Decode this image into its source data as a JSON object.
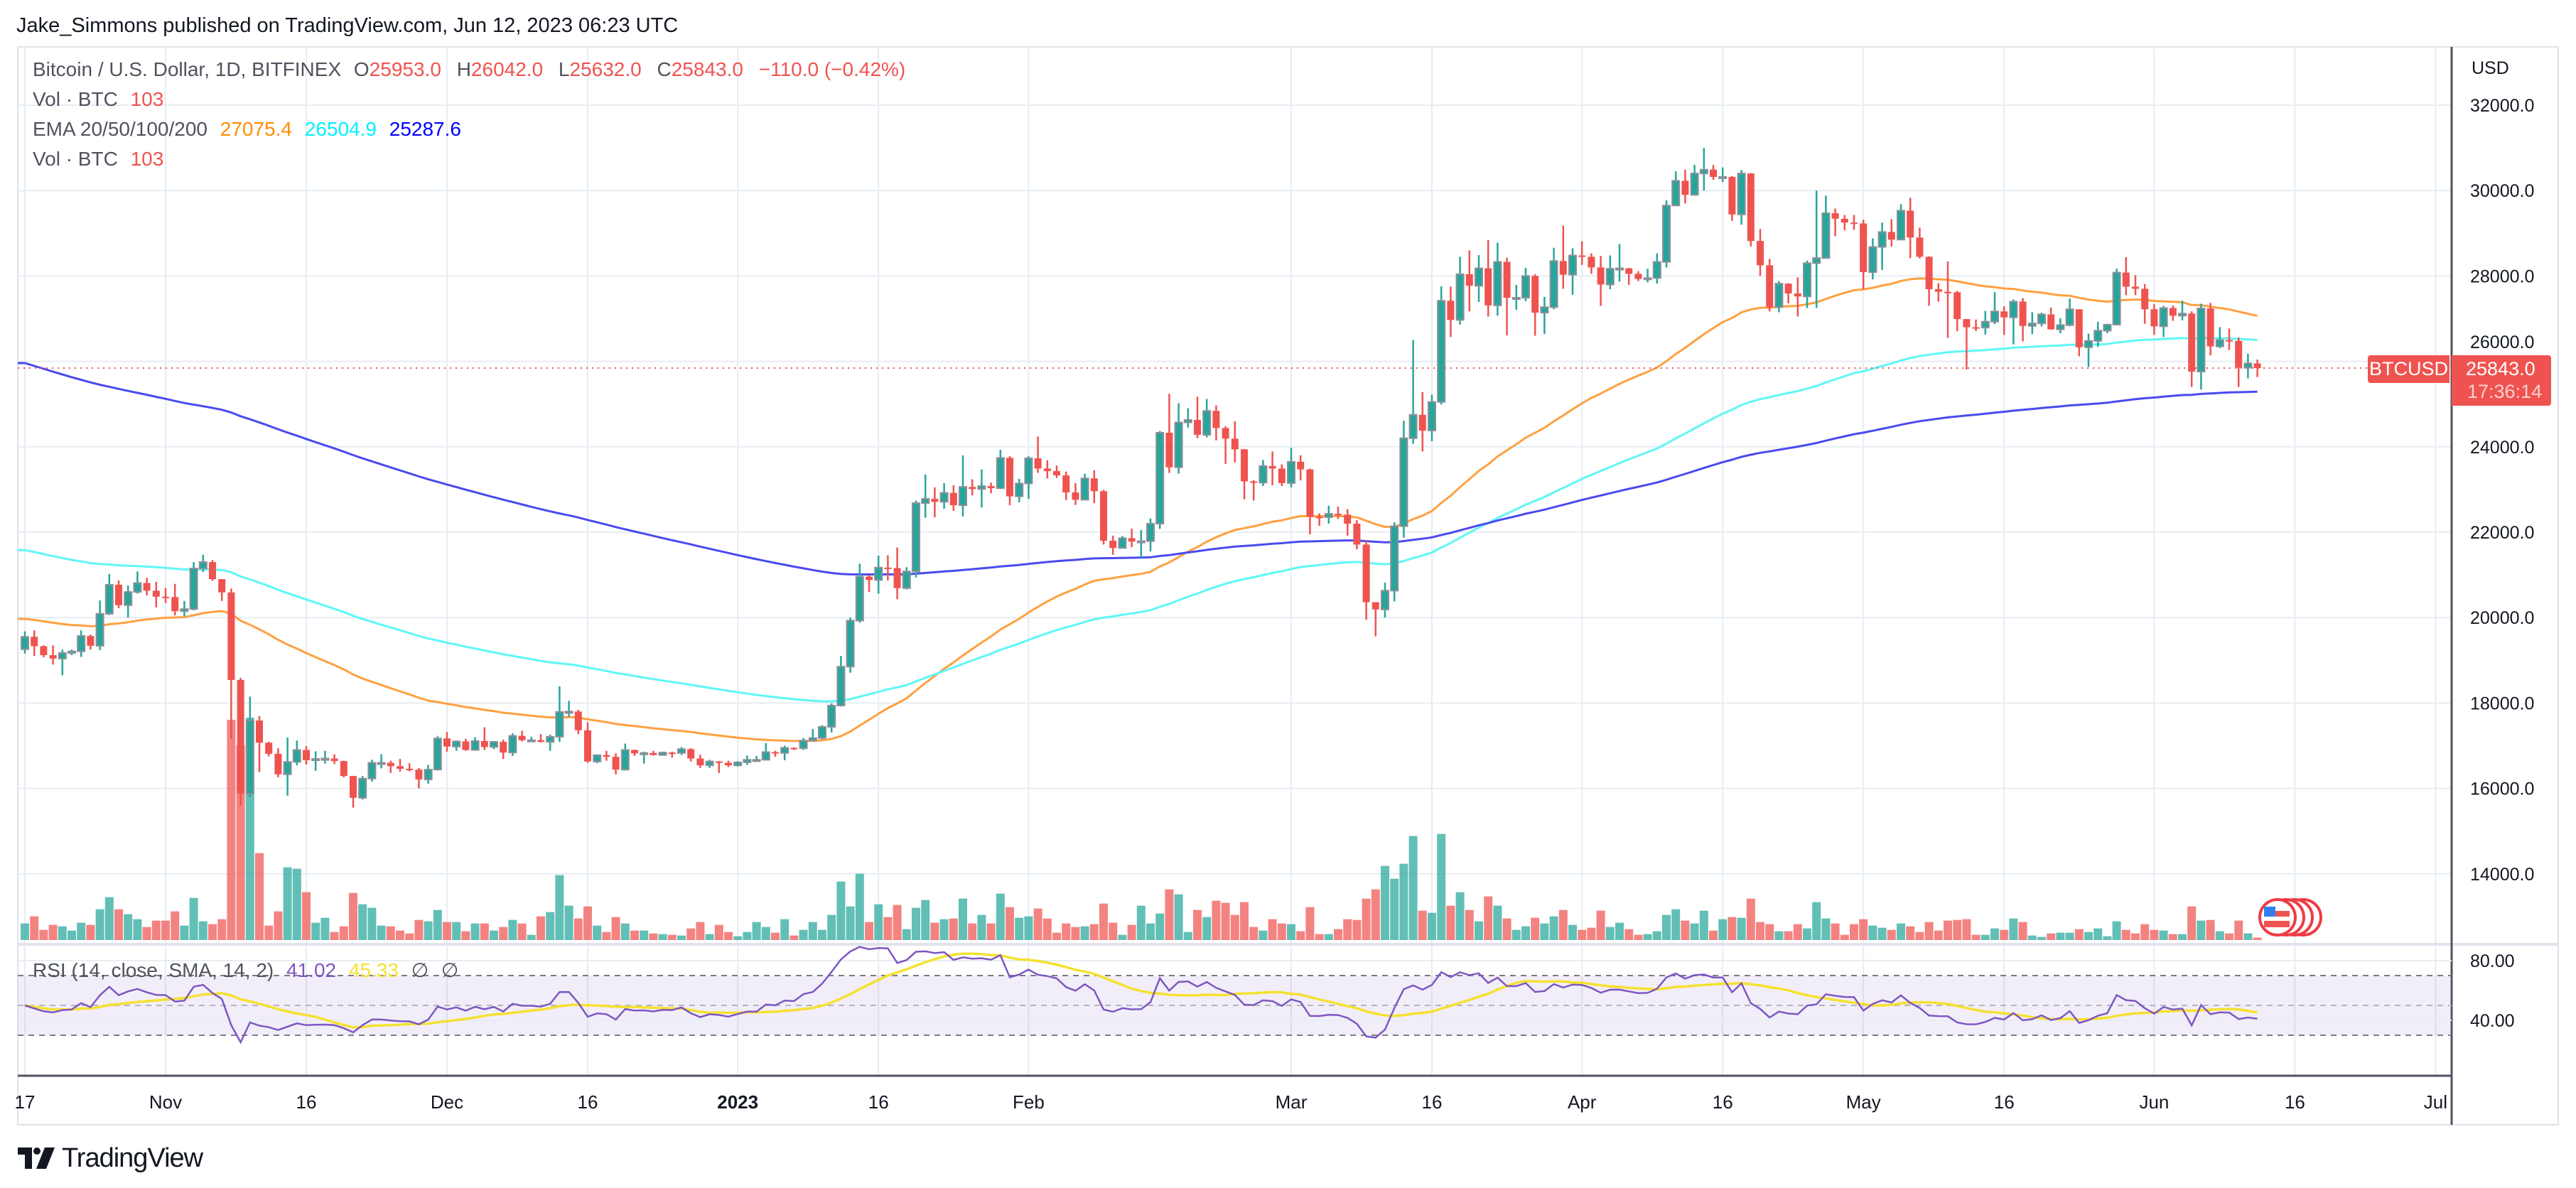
{
  "header": {
    "published": "Jake_Simmons published on TradingView.com, Jun 12, 2023 06:23 UTC"
  },
  "legend": {
    "title": "Bitcoin / U.S. Dollar, 1D, BITFINEX",
    "o_label": "O",
    "o_value": "25953.0",
    "h_label": "H",
    "h_value": "26042.0",
    "l_label": "L",
    "l_value": "25632.0",
    "c_label": "C",
    "c_value": "25843.0",
    "change": "−110.0 (−0.42%)",
    "vol_label": "Vol · BTC",
    "vol_value": "103",
    "ema_label": "EMA 20/50/100/200",
    "ema_values": [
      "27075.4",
      "26504.9",
      "25287.6"
    ],
    "vol2_label": "Vol · BTC",
    "vol2_value": "103",
    "rsi_label": "RSI (14, close, SMA, 14, 2)",
    "rsi_value": "41.02",
    "rsi_sma_value": "45.33",
    "rsi_extra": [
      "∅",
      "∅"
    ]
  },
  "price_axis": {
    "currency": "USD",
    "symbol_label": "BTCUSD",
    "last_price": "25843.0",
    "countdown": "17:36:14"
  },
  "colors": {
    "up": "#26a69a",
    "down": "#ef5350",
    "ema_lines": [
      "#ffa040",
      "#5ff7f7",
      "#4a4af0"
    ],
    "ema_text": [
      "#ff8c00",
      "#00f0ff",
      "#0000ff"
    ],
    "rsi": "#7e57c2",
    "rsi_sma": "#f5e130"
  },
  "branding": {
    "logo_text": "TradingView",
    "logo_icon": "tradingview-logo-icon",
    "event_icon": "us-flag-event-icon"
  },
  "chart_data": {
    "type": "candlestick",
    "interval": "1D",
    "first_date": "2022-10-17",
    "last_date": "2023-06-12",
    "first_open": 19260,
    "close": [
      19550,
      19330,
      19120,
      19040,
      19170,
      19210,
      19570,
      19340,
      20090,
      20770,
      20290,
      20600,
      20810,
      20630,
      20490,
      20480,
      20150,
      20200,
      21150,
      21300,
      20900,
      20590,
      18540,
      15880,
      17590,
      17070,
      16810,
      16330,
      16620,
      16900,
      16660,
      16690,
      16700,
      16640,
      16290,
      15780,
      16230,
      16600,
      16600,
      16520,
      16460,
      16440,
      16210,
      16440,
      17170,
      16980,
      17100,
      16900,
      17110,
      16970,
      17090,
      16840,
      17230,
      17130,
      17130,
      17090,
      17210,
      17790,
      17800,
      17360,
      16630,
      16780,
      16740,
      16440,
      16900,
      16820,
      16830,
      16780,
      16840,
      16830,
      16920,
      16700,
      16540,
      16630,
      16600,
      16540,
      16610,
      16670,
      16670,
      16850,
      16830,
      16950,
      16940,
      17120,
      17180,
      17440,
      17940,
      18850,
      19930,
      20960,
      20880,
      21170,
      21160,
      20690,
      21080,
      22680,
      22780,
      22710,
      22920,
      22630,
      23060,
      23010,
      23080,
      23030,
      23740,
      22840,
      23140,
      23730,
      23490,
      23430,
      23330,
      22930,
      22760,
      23260,
      22960,
      21800,
      21630,
      21860,
      21780,
      21790,
      22200,
      24330,
      23520,
      24570,
      24630,
      24280,
      24840,
      24440,
      24190,
      23940,
      23190,
      23160,
      23550,
      23490,
      23150,
      23650,
      23470,
      22360,
      22350,
      22430,
      22410,
      22200,
      21710,
      20360,
      20190,
      20630,
      22140,
      24200,
      24750,
      24380,
      25050,
      27420,
      26970,
      28040,
      27770,
      28180,
      27310,
      28330,
      27490,
      27490,
      28000,
      27140,
      27270,
      28350,
      28030,
      28480,
      28450,
      28200,
      27800,
      28170,
      28180,
      28050,
      27930,
      27950,
      28330,
      29650,
      30230,
      29900,
      30400,
      30490,
      30320,
      30320,
      29440,
      30400,
      28820,
      28250,
      27270,
      27820,
      27590,
      27520,
      28300,
      28420,
      29470,
      29340,
      29250,
      29230,
      28090,
      28680,
      29030,
      28850,
      29530,
      28900,
      28450,
      27690,
      27630,
      27620,
      26990,
      26800,
      26790,
      26930,
      27170,
      27030,
      27400,
      26830,
      26890,
      27100,
      26750,
      26850,
      27220,
      26330,
      26480,
      26720,
      26860,
      28080,
      27750,
      27700,
      27220,
      26820,
      27250,
      27070,
      27120,
      25760,
      27240,
      26350,
      26500,
      26480,
      25850,
      25953,
      25843
    ],
    "high": [
      19680,
      19700,
      19350,
      19350,
      19250,
      19250,
      19700,
      19600,
      20400,
      21020,
      20870,
      20750,
      21080,
      20930,
      20840,
      20690,
      20790,
      20390,
      21300,
      21470,
      21350,
      20670,
      20680,
      18590,
      18150,
      17690,
      17090,
      16940,
      17190,
      17120,
      16990,
      16870,
      16880,
      16800,
      16650,
      16290,
      16290,
      16670,
      16800,
      16650,
      16690,
      16590,
      16480,
      16550,
      17220,
      17320,
      17120,
      17160,
      17200,
      17430,
      17110,
      17140,
      17290,
      17350,
      17210,
      17270,
      17260,
      18390,
      18050,
      17840,
      17550,
      16790,
      16880,
      16820,
      17050,
      16910,
      16860,
      16880,
      16860,
      16860,
      16970,
      16940,
      16790,
      16670,
      16640,
      16650,
      16640,
      16770,
      16760,
      17060,
      16880,
      17000,
      16960,
      17180,
      17390,
      17480,
      17990,
      19100,
      20000,
      21260,
      21000,
      21450,
      21460,
      21640,
      21180,
      22740,
      23350,
      23050,
      23150,
      23100,
      23800,
      23240,
      23470,
      23160,
      23930,
      23780,
      23250,
      23780,
      24240,
      23680,
      23560,
      23420,
      23150,
      23370,
      23450,
      22990,
      21920,
      21910,
      22080,
      22050,
      22320,
      24370,
      25240,
      25020,
      24900,
      25170,
      25120,
      24970,
      24480,
      24600,
      23950,
      23220,
      23690,
      23890,
      23590,
      23980,
      23800,
      23490,
      22440,
      22620,
      22600,
      22540,
      22280,
      21820,
      20360,
      20820,
      22230,
      24610,
      26500,
      25280,
      25220,
      27760,
      27750,
      28450,
      28600,
      28490,
      28840,
      28780,
      28430,
      27790,
      28190,
      28040,
      27510,
      28660,
      29180,
      28650,
      28810,
      28530,
      28470,
      28480,
      28750,
      28190,
      28110,
      28170,
      28530,
      29770,
      30450,
      30490,
      30600,
      31000,
      30600,
      30540,
      30340,
      30480,
      30410,
      29100,
      28400,
      27880,
      27830,
      27970,
      28360,
      30000,
      29880,
      29580,
      29430,
      29430,
      29320,
      28880,
      29250,
      29330,
      29680,
      29830,
      29130,
      28460,
      27830,
      28340,
      27650,
      26990,
      26980,
      27180,
      27620,
      27290,
      27450,
      27480,
      27150,
      27140,
      27260,
      27010,
      27470,
      27210,
      26650,
      26930,
      26880,
      28170,
      28440,
      28020,
      27810,
      27340,
      27300,
      27310,
      27420,
      27170,
      27350,
      27370,
      26800,
      26770,
      26560,
      26180,
      26042
    ],
    "low": [
      19160,
      19100,
      19070,
      18900,
      18650,
      19120,
      19080,
      19250,
      19240,
      20060,
      20220,
      20000,
      20560,
      20520,
      20240,
      20340,
      20050,
      20030,
      20170,
      21070,
      20860,
      20390,
      17160,
      15600,
      15800,
      16380,
      16750,
      16260,
      15830,
      16540,
      16560,
      16410,
      16580,
      16570,
      16260,
      15550,
      15740,
      16160,
      16470,
      16360,
      16390,
      16400,
      16000,
      16110,
      16420,
      16860,
      16880,
      16880,
      16890,
      16900,
      16920,
      16690,
      16760,
      17100,
      17120,
      17070,
      16880,
      17090,
      17680,
      17270,
      16600,
      16590,
      16650,
      16330,
      16420,
      16760,
      16580,
      16770,
      16780,
      16720,
      16780,
      16630,
      16480,
      16480,
      16360,
      16500,
      16510,
      16550,
      16620,
      16650,
      16740,
      16660,
      16900,
      16900,
      17120,
      17150,
      17310,
      17920,
      18710,
      19880,
      20600,
      20560,
      20870,
      20430,
      20660,
      20940,
      22340,
      22350,
      22550,
      22500,
      22370,
      22860,
      22580,
      22910,
      23010,
      22630,
      22700,
      22780,
      23390,
      23260,
      23270,
      22750,
      22640,
      22750,
      22680,
      21710,
      21470,
      21630,
      21650,
      21400,
      21550,
      22080,
      23390,
      23370,
      24450,
      24200,
      24220,
      24150,
      23600,
      23630,
      22770,
      22740,
      23080,
      23100,
      23080,
      23050,
      23210,
      21950,
      22150,
      22200,
      22310,
      21920,
      21600,
      19950,
      19560,
      20000,
      20380,
      21870,
      24070,
      23890,
      24130,
      24990,
      26570,
      26860,
      27170,
      27390,
      27050,
      27070,
      26610,
      27210,
      27410,
      26600,
      26640,
      27220,
      27700,
      27560,
      28260,
      28050,
      27300,
      27690,
      27870,
      27790,
      27880,
      27850,
      27820,
      28200,
      29660,
      29700,
      29880,
      30000,
      30250,
      30200,
      29290,
      29200,
      28690,
      28000,
      27170,
      27150,
      27360,
      27050,
      27250,
      27250,
      28410,
      28930,
      29070,
      29080,
      27690,
      27920,
      28140,
      28690,
      28840,
      28420,
      28410,
      27300,
      27400,
      26550,
      26710,
      25810,
      26710,
      26630,
      26870,
      26620,
      26400,
      26470,
      26640,
      26820,
      26740,
      26660,
      26820,
      26120,
      25870,
      26340,
      26660,
      26860,
      27550,
      27550,
      26880,
      26620,
      26570,
      26950,
      26960,
      25400,
      25340,
      26140,
      26310,
      26270,
      25400,
      25600,
      25632
    ],
    "volume": [
      700,
      1000,
      430,
      640,
      580,
      400,
      730,
      640,
      1300,
      1810,
      1300,
      1090,
      880,
      550,
      820,
      820,
      1210,
      610,
      1780,
      790,
      670,
      880,
      9300,
      8220,
      9390,
      3670,
      610,
      1210,
      3070,
      3010,
      2020,
      730,
      940,
      340,
      580,
      1990,
      1510,
      1360,
      610,
      580,
      400,
      280,
      850,
      790,
      1270,
      760,
      760,
      370,
      700,
      700,
      400,
      550,
      850,
      700,
      220,
      1000,
      1180,
      2740,
      1450,
      910,
      1420,
      610,
      340,
      970,
      700,
      400,
      400,
      280,
      250,
      220,
      190,
      490,
      760,
      250,
      640,
      340,
      160,
      340,
      760,
      550,
      310,
      880,
      190,
      430,
      760,
      430,
      1060,
      2470,
      1420,
      2800,
      760,
      1510,
      970,
      1480,
      460,
      1360,
      1690,
      730,
      880,
      910,
      1750,
      700,
      1060,
      700,
      1960,
      1390,
      940,
      1000,
      1330,
      910,
      310,
      700,
      550,
      580,
      670,
      1540,
      730,
      220,
      640,
      1450,
      700,
      1120,
      2140,
      1930,
      340,
      1270,
      970,
      1660,
      1570,
      1060,
      1600,
      550,
      400,
      880,
      700,
      670,
      370,
      1390,
      250,
      250,
      460,
      880,
      850,
      1750,
      2140,
      3130,
      2590,
      3220,
      4390,
      1240,
      1150,
      4480,
      1450,
      2020,
      1270,
      790,
      1840,
      1450,
      910,
      430,
      580,
      940,
      700,
      1000,
      1270,
      640,
      430,
      520,
      1240,
      550,
      730,
      460,
      220,
      250,
      370,
      1060,
      1300,
      820,
      700,
      1240,
      400,
      880,
      970,
      940,
      1750,
      760,
      670,
      370,
      370,
      670,
      490,
      1600,
      910,
      700,
      220,
      670,
      880,
      610,
      520,
      430,
      700,
      580,
      340,
      760,
      400,
      820,
      850,
      880,
      220,
      220,
      490,
      430,
      910,
      760,
      190,
      130,
      280,
      310,
      310,
      460,
      340,
      490,
      160,
      790,
      430,
      280,
      670,
      430,
      400,
      250,
      250,
      1420,
      820,
      850,
      370,
      280,
      820,
      280,
      103
    ],
    "ema": {
      "periods": [
        50,
        100,
        200
      ],
      "start_values": [
        19970,
        21580,
        25960
      ]
    },
    "rsi": {
      "period": 14,
      "sma_period": 14,
      "levels": [
        70,
        50,
        30
      ],
      "ylim": [
        0,
        100
      ]
    },
    "ylim": [
      12000,
      33400
    ],
    "y_ticks": [
      "32000.0",
      "30000.0",
      "28000.0",
      "26000.0",
      "24000.0",
      "22000.0",
      "20000.0",
      "18000.0",
      "16000.0",
      "14000.0"
    ],
    "rsi_ticks": [
      "80.00",
      "40.00"
    ],
    "x_ticks": [
      {
        "date": "2022-10-17",
        "label": "17"
      },
      {
        "date": "2022-11-01",
        "label": "Nov"
      },
      {
        "date": "2022-11-16",
        "label": "16"
      },
      {
        "date": "2022-12-01",
        "label": "Dec"
      },
      {
        "date": "2022-12-16",
        "label": "16"
      },
      {
        "date": "2023-01-01",
        "label": "2023"
      },
      {
        "date": "2023-01-16",
        "label": "16"
      },
      {
        "date": "2023-02-01",
        "label": "Feb"
      },
      {
        "date": "2023-03-01",
        "label": "Mar"
      },
      {
        "date": "2023-03-16",
        "label": "16"
      },
      {
        "date": "2023-04-01",
        "label": "Apr"
      },
      {
        "date": "2023-04-16",
        "label": "16"
      },
      {
        "date": "2023-05-01",
        "label": "May"
      },
      {
        "date": "2023-05-16",
        "label": "16"
      },
      {
        "date": "2023-06-01",
        "label": "Jun"
      },
      {
        "date": "2023-06-16",
        "label": "16"
      },
      {
        "date": "2023-07-01",
        "label": "Jul"
      }
    ]
  }
}
